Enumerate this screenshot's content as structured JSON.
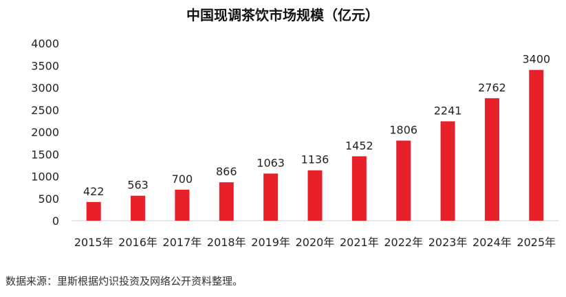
{
  "chart_data": {
    "type": "bar",
    "title": "中国现调茶饮市场规模（亿元）",
    "categories": [
      "2015年",
      "2016年",
      "2017年",
      "2018年",
      "2019年",
      "2020年",
      "2021年",
      "2022年",
      "2023年",
      "2024年",
      "2025年"
    ],
    "values": [
      422,
      563,
      700,
      866,
      1063,
      1136,
      1452,
      1806,
      2241,
      2762,
      3400
    ],
    "ylim": [
      0,
      4000
    ],
    "yticks": [
      0,
      500,
      1000,
      1500,
      2000,
      2500,
      3000,
      3500,
      4000
    ],
    "bar_color": "#e8202a",
    "grid": false,
    "legend": "none",
    "data_labels": true
  },
  "source_note": "数据来源：里斯根据灼识投资及网络公开资料整理。"
}
